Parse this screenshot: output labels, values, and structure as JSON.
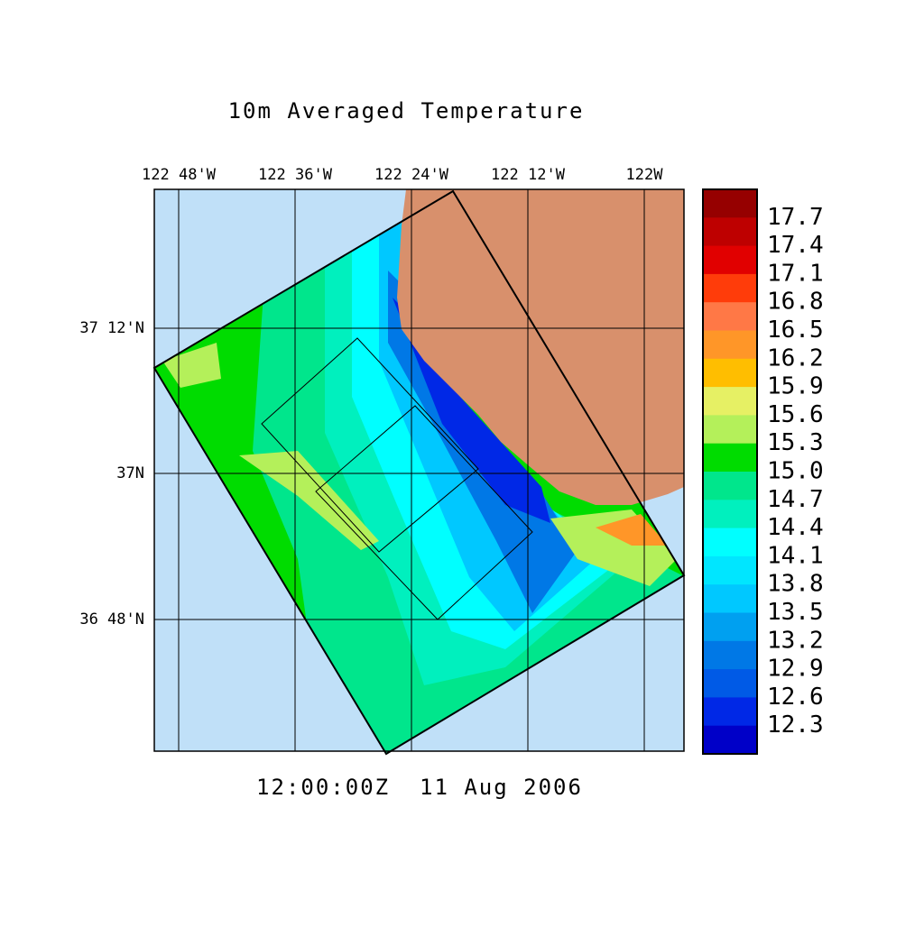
{
  "title": "10m Averaged Temperature",
  "time": "12:00:00Z  11 Aug 2006",
  "lon_labels": [
    "122 48'W",
    "122 36'W",
    "122 24'W",
    "122 12'W",
    "122W"
  ],
  "lat_labels": [
    "37 12'N",
    "37N",
    "36 48'N"
  ],
  "colorbar": {
    "labels": [
      "17.7",
      "17.4",
      "17.1",
      "16.8",
      "16.5",
      "16.2",
      "15.9",
      "15.6",
      "15.3",
      "15.0",
      "14.7",
      "14.4",
      "14.1",
      "13.8",
      "13.5",
      "13.2",
      "12.9",
      "12.6",
      "12.3"
    ],
    "colors": [
      "#960000",
      "#be0000",
      "#e10000",
      "#ff3c0a",
      "#ff7846",
      "#ff9628",
      "#ffbe00",
      "#e6f064",
      "#b4f05a",
      "#00dc00",
      "#00e68c",
      "#00f0be",
      "#00ffff",
      "#00e6ff",
      "#00c8ff",
      "#00a0f0",
      "#0078e6",
      "#005ae6",
      "#0028e6",
      "#0000c8"
    ]
  }
}
